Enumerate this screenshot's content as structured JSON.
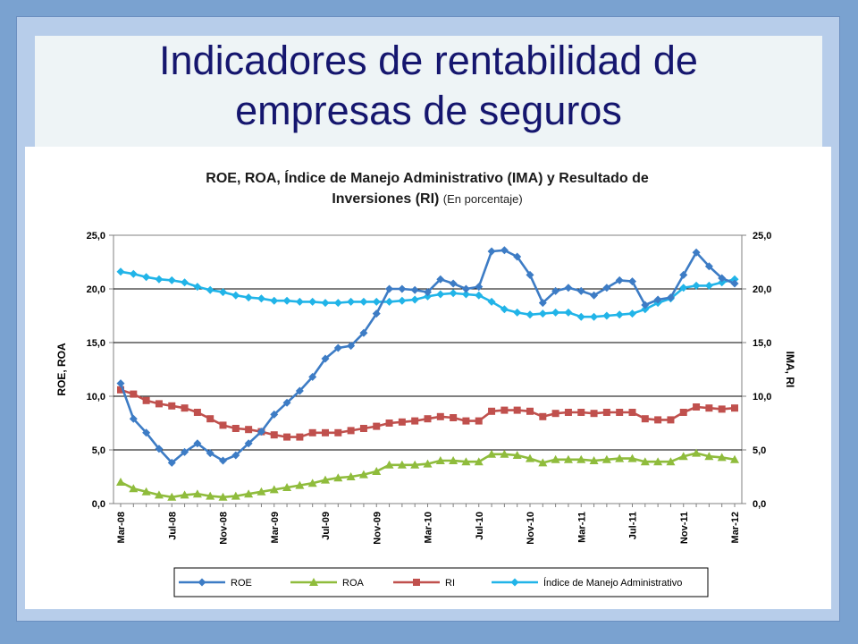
{
  "slide": {
    "title_line1": "Indicadores de rentabilidad de",
    "title_line2": "empresas de seguros"
  },
  "colors": {
    "background": "#7aa2d0",
    "panel": "#b7cdea",
    "title_band": "#eef4f6",
    "title_text": "#15166e",
    "roe": "#3d7cc5",
    "roa": "#8fbc3c",
    "ri": "#c0504d",
    "ima": "#21b4e8"
  },
  "chart_data": {
    "type": "line",
    "title_line1": "ROE, ROA, Índice de Manejo Administrativo  (IMA) y Resultado de",
    "title_line2": "Inversiones (RI)",
    "subtitle": "(En porcentaje)",
    "ylabel_left": "ROE, ROA",
    "ylabel_right": "IMA, RI",
    "ylim": [
      0,
      25
    ],
    "yticks": [
      "0,0",
      "5,0",
      "10,0",
      "15,0",
      "20,0",
      "25,0"
    ],
    "x_tick_labels": [
      "Mar-08",
      "Jul-08",
      "Nov-08",
      "Mar-09",
      "Jul-09",
      "Nov-09",
      "Mar-10",
      "Jul-10",
      "Nov-10",
      "Mar-11",
      "Jul-11",
      "Nov-11",
      "Mar-12"
    ],
    "x_start": "Mar-08",
    "x_end": "Mar-12",
    "grid": true,
    "legend_position": "bottom",
    "series": [
      {
        "name": "ROE",
        "axis": "left",
        "marker": "diamond",
        "values": [
          11.2,
          7.9,
          6.6,
          5.1,
          3.8,
          4.8,
          5.6,
          4.7,
          4.0,
          4.5,
          5.6,
          6.7,
          8.3,
          9.4,
          10.5,
          11.8,
          13.5,
          14.5,
          14.7,
          15.9,
          17.7,
          20.0,
          20.0,
          19.9,
          19.7,
          20.9,
          20.5,
          20.0,
          20.2,
          23.5,
          23.6,
          23.0,
          21.3,
          18.7,
          19.8,
          20.1,
          19.8,
          19.4,
          20.1,
          20.8,
          20.7,
          18.5,
          19.0,
          19.2,
          21.3,
          23.4,
          22.1,
          21.0,
          20.5
        ]
      },
      {
        "name": "ROA",
        "axis": "left",
        "marker": "triangle",
        "values": [
          2.0,
          1.4,
          1.1,
          0.8,
          0.6,
          0.8,
          0.9,
          0.7,
          0.6,
          0.7,
          0.9,
          1.1,
          1.3,
          1.5,
          1.7,
          1.9,
          2.2,
          2.4,
          2.5,
          2.7,
          3.0,
          3.6,
          3.6,
          3.6,
          3.7,
          4.0,
          4.0,
          3.9,
          3.9,
          4.6,
          4.6,
          4.5,
          4.2,
          3.8,
          4.1,
          4.1,
          4.1,
          4.0,
          4.1,
          4.2,
          4.2,
          3.9,
          3.9,
          3.9,
          4.4,
          4.7,
          4.4,
          4.3,
          4.1
        ]
      },
      {
        "name": "RI",
        "axis": "right",
        "marker": "square",
        "values": [
          10.6,
          10.2,
          9.6,
          9.3,
          9.1,
          8.9,
          8.5,
          7.9,
          7.3,
          7.0,
          6.9,
          6.7,
          6.4,
          6.2,
          6.2,
          6.6,
          6.6,
          6.6,
          6.8,
          7.0,
          7.2,
          7.5,
          7.6,
          7.7,
          7.9,
          8.1,
          8.0,
          7.7,
          7.7,
          8.6,
          8.7,
          8.7,
          8.6,
          8.1,
          8.4,
          8.5,
          8.5,
          8.4,
          8.5,
          8.5,
          8.5,
          7.9,
          7.8,
          7.8,
          8.5,
          9.0,
          8.9,
          8.8,
          8.9
        ]
      },
      {
        "name": "Índice de Manejo Administrativo",
        "axis": "right",
        "marker": "diamond",
        "values": [
          21.6,
          21.4,
          21.1,
          20.9,
          20.8,
          20.6,
          20.2,
          19.9,
          19.7,
          19.4,
          19.2,
          19.1,
          18.9,
          18.9,
          18.8,
          18.8,
          18.7,
          18.7,
          18.8,
          18.8,
          18.8,
          18.8,
          18.9,
          19.0,
          19.3,
          19.5,
          19.6,
          19.5,
          19.4,
          18.8,
          18.1,
          17.8,
          17.6,
          17.7,
          17.8,
          17.8,
          17.4,
          17.4,
          17.5,
          17.6,
          17.7,
          18.1,
          18.7,
          19.1,
          20.1,
          20.3,
          20.3,
          20.6,
          20.9
        ]
      }
    ]
  }
}
